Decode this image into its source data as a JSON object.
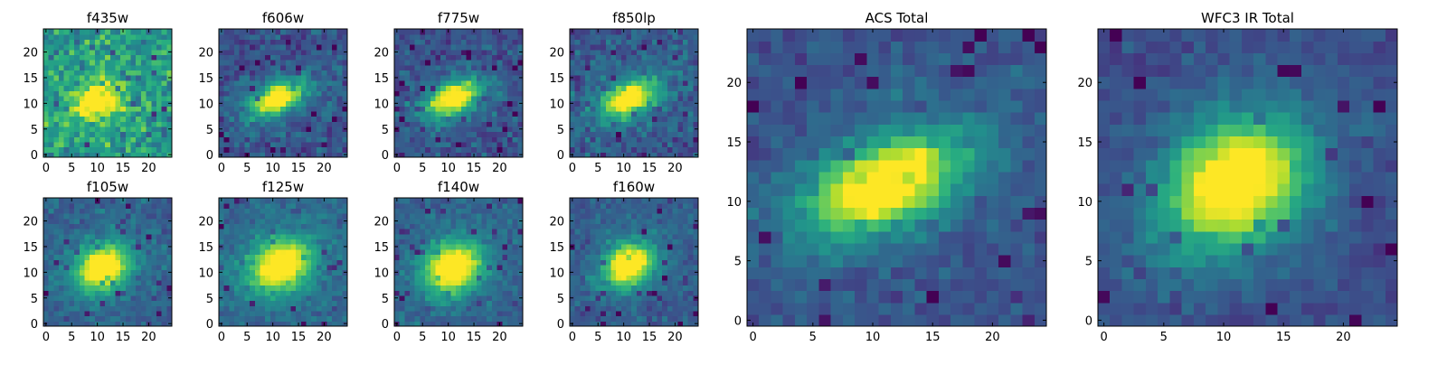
{
  "figure": {
    "panels": [
      {
        "id": "f435w",
        "title": "f435w",
        "center": [
          10,
          10.5
        ],
        "spread": [
          3.2,
          2.2
        ],
        "angle": 20,
        "peak": 0.55,
        "noise": 0.45,
        "base": 0.55,
        "seed": 11
      },
      {
        "id": "f606w",
        "title": "f606w",
        "center": [
          11,
          11
        ],
        "spread": [
          3.6,
          1.8
        ],
        "angle": 25,
        "peak": 0.8,
        "noise": 0.28,
        "base": 0.25,
        "seed": 23
      },
      {
        "id": "f775w",
        "title": "f775w",
        "center": [
          11,
          11
        ],
        "spread": [
          3.6,
          2.0
        ],
        "angle": 25,
        "peak": 0.8,
        "noise": 0.28,
        "base": 0.25,
        "seed": 37
      },
      {
        "id": "f850lp",
        "title": "f850lp",
        "center": [
          11,
          11
        ],
        "spread": [
          3.6,
          2.0
        ],
        "angle": 25,
        "peak": 0.8,
        "noise": 0.3,
        "base": 0.28,
        "seed": 41
      },
      {
        "id": "f105w",
        "title": "f105w",
        "center": [
          11,
          11
        ],
        "spread": [
          3.4,
          2.7
        ],
        "angle": 30,
        "peak": 0.82,
        "noise": 0.22,
        "base": 0.3,
        "seed": 53
      },
      {
        "id": "f125w",
        "title": "f125w",
        "center": [
          11.5,
          11.5
        ],
        "spread": [
          4.0,
          3.0
        ],
        "angle": 30,
        "peak": 0.8,
        "noise": 0.22,
        "base": 0.32,
        "seed": 67
      },
      {
        "id": "f140w",
        "title": "f140w",
        "center": [
          11,
          11
        ],
        "spread": [
          3.6,
          3.0
        ],
        "angle": 30,
        "peak": 0.82,
        "noise": 0.22,
        "base": 0.3,
        "seed": 71
      },
      {
        "id": "f160w",
        "title": "f160w",
        "center": [
          11,
          11.5
        ],
        "spread": [
          3.2,
          2.5
        ],
        "angle": 30,
        "peak": 0.85,
        "noise": 0.22,
        "base": 0.28,
        "seed": 83
      },
      {
        "id": "acs-total",
        "title": "ACS Total",
        "center": [
          11,
          11.5
        ],
        "spread": [
          4.2,
          2.2
        ],
        "angle": 22,
        "peak": 0.85,
        "noise": 0.2,
        "base": 0.25,
        "seed": 97
      },
      {
        "id": "wfc3-ir-total",
        "title": "WFC3 IR Total",
        "center": [
          11,
          11.5
        ],
        "spread": [
          4.0,
          3.2
        ],
        "angle": 35,
        "peak": 0.85,
        "noise": 0.18,
        "base": 0.22,
        "seed": 101
      }
    ],
    "small_ticks": [
      "0",
      "5",
      "10",
      "15",
      "20"
    ],
    "small_tick_values": [
      0,
      5,
      10,
      15,
      20
    ],
    "colormap": [
      "#440154",
      "#472d7b",
      "#3b528b",
      "#2c728e",
      "#21918c",
      "#28ae80",
      "#5ec962",
      "#addc30",
      "#fde725"
    ]
  },
  "chart_data": [
    {
      "type": "heatmap",
      "title": "f435w",
      "x": {
        "range": [
          -0.5,
          24.5
        ],
        "ticks": [
          0,
          5,
          10,
          15,
          20
        ]
      },
      "y": {
        "range": [
          -0.5,
          24.5
        ],
        "ticks": [
          0,
          5,
          10,
          15,
          20
        ]
      },
      "grid_size": [
        25,
        25
      ],
      "colormap": "viridis",
      "source_peak_pixel": [
        10,
        10.5
      ]
    },
    {
      "type": "heatmap",
      "title": "f606w",
      "x": {
        "range": [
          -0.5,
          24.5
        ],
        "ticks": [
          0,
          5,
          10,
          15,
          20
        ]
      },
      "y": {
        "range": [
          -0.5,
          24.5
        ],
        "ticks": [
          0,
          5,
          10,
          15,
          20
        ]
      },
      "grid_size": [
        25,
        25
      ],
      "colormap": "viridis",
      "source_peak_pixel": [
        11,
        11
      ]
    },
    {
      "type": "heatmap",
      "title": "f775w",
      "x": {
        "range": [
          -0.5,
          24.5
        ],
        "ticks": [
          0,
          5,
          10,
          15,
          20
        ]
      },
      "y": {
        "range": [
          -0.5,
          24.5
        ],
        "ticks": [
          0,
          5,
          10,
          15,
          20
        ]
      },
      "grid_size": [
        25,
        25
      ],
      "colormap": "viridis",
      "source_peak_pixel": [
        11,
        11
      ]
    },
    {
      "type": "heatmap",
      "title": "f850lp",
      "x": {
        "range": [
          -0.5,
          24.5
        ],
        "ticks": [
          0,
          5,
          10,
          15,
          20
        ]
      },
      "y": {
        "range": [
          -0.5,
          24.5
        ],
        "ticks": [
          0,
          5,
          10,
          15,
          20
        ]
      },
      "grid_size": [
        25,
        25
      ],
      "colormap": "viridis",
      "source_peak_pixel": [
        11,
        11
      ]
    },
    {
      "type": "heatmap",
      "title": "f105w",
      "x": {
        "range": [
          -0.5,
          24.5
        ],
        "ticks": [
          0,
          5,
          10,
          15,
          20
        ]
      },
      "y": {
        "range": [
          -0.5,
          24.5
        ],
        "ticks": [
          0,
          5,
          10,
          15,
          20
        ]
      },
      "grid_size": [
        25,
        25
      ],
      "colormap": "viridis",
      "source_peak_pixel": [
        11,
        11
      ]
    },
    {
      "type": "heatmap",
      "title": "f125w",
      "x": {
        "range": [
          -0.5,
          24.5
        ],
        "ticks": [
          0,
          5,
          10,
          15,
          20
        ]
      },
      "y": {
        "range": [
          -0.5,
          24.5
        ],
        "ticks": [
          0,
          5,
          10,
          15,
          20
        ]
      },
      "grid_size": [
        25,
        25
      ],
      "colormap": "viridis",
      "source_peak_pixel": [
        11.5,
        11.5
      ]
    },
    {
      "type": "heatmap",
      "title": "f140w",
      "x": {
        "range": [
          -0.5,
          24.5
        ],
        "ticks": [
          0,
          5,
          10,
          15,
          20
        ]
      },
      "y": {
        "range": [
          -0.5,
          24.5
        ],
        "ticks": [
          0,
          5,
          10,
          15,
          20
        ]
      },
      "grid_size": [
        25,
        25
      ],
      "colormap": "viridis",
      "source_peak_pixel": [
        11,
        11
      ]
    },
    {
      "type": "heatmap",
      "title": "f160w",
      "x": {
        "range": [
          -0.5,
          24.5
        ],
        "ticks": [
          0,
          5,
          10,
          15,
          20
        ]
      },
      "y": {
        "range": [
          -0.5,
          24.5
        ],
        "ticks": [
          0,
          5,
          10,
          15,
          20
        ]
      },
      "grid_size": [
        25,
        25
      ],
      "colormap": "viridis",
      "source_peak_pixel": [
        11,
        11.5
      ]
    },
    {
      "type": "heatmap",
      "title": "ACS Total",
      "x": {
        "range": [
          -0.5,
          24.5
        ],
        "ticks": [
          0,
          5,
          10,
          15,
          20
        ]
      },
      "y": {
        "range": [
          -0.5,
          24.5
        ],
        "ticks": [
          0,
          5,
          10,
          15,
          20
        ]
      },
      "grid_size": [
        25,
        25
      ],
      "colormap": "viridis",
      "source_peak_pixel": [
        11,
        11.5
      ]
    },
    {
      "type": "heatmap",
      "title": "WFC3 IR Total",
      "x": {
        "range": [
          -0.5,
          24.5
        ],
        "ticks": [
          0,
          5,
          10,
          15,
          20
        ]
      },
      "y": {
        "range": [
          -0.5,
          24.5
        ],
        "ticks": [
          0,
          5,
          10,
          15,
          20
        ]
      },
      "grid_size": [
        25,
        25
      ],
      "colormap": "viridis",
      "source_peak_pixel": [
        11,
        11.5
      ]
    }
  ]
}
